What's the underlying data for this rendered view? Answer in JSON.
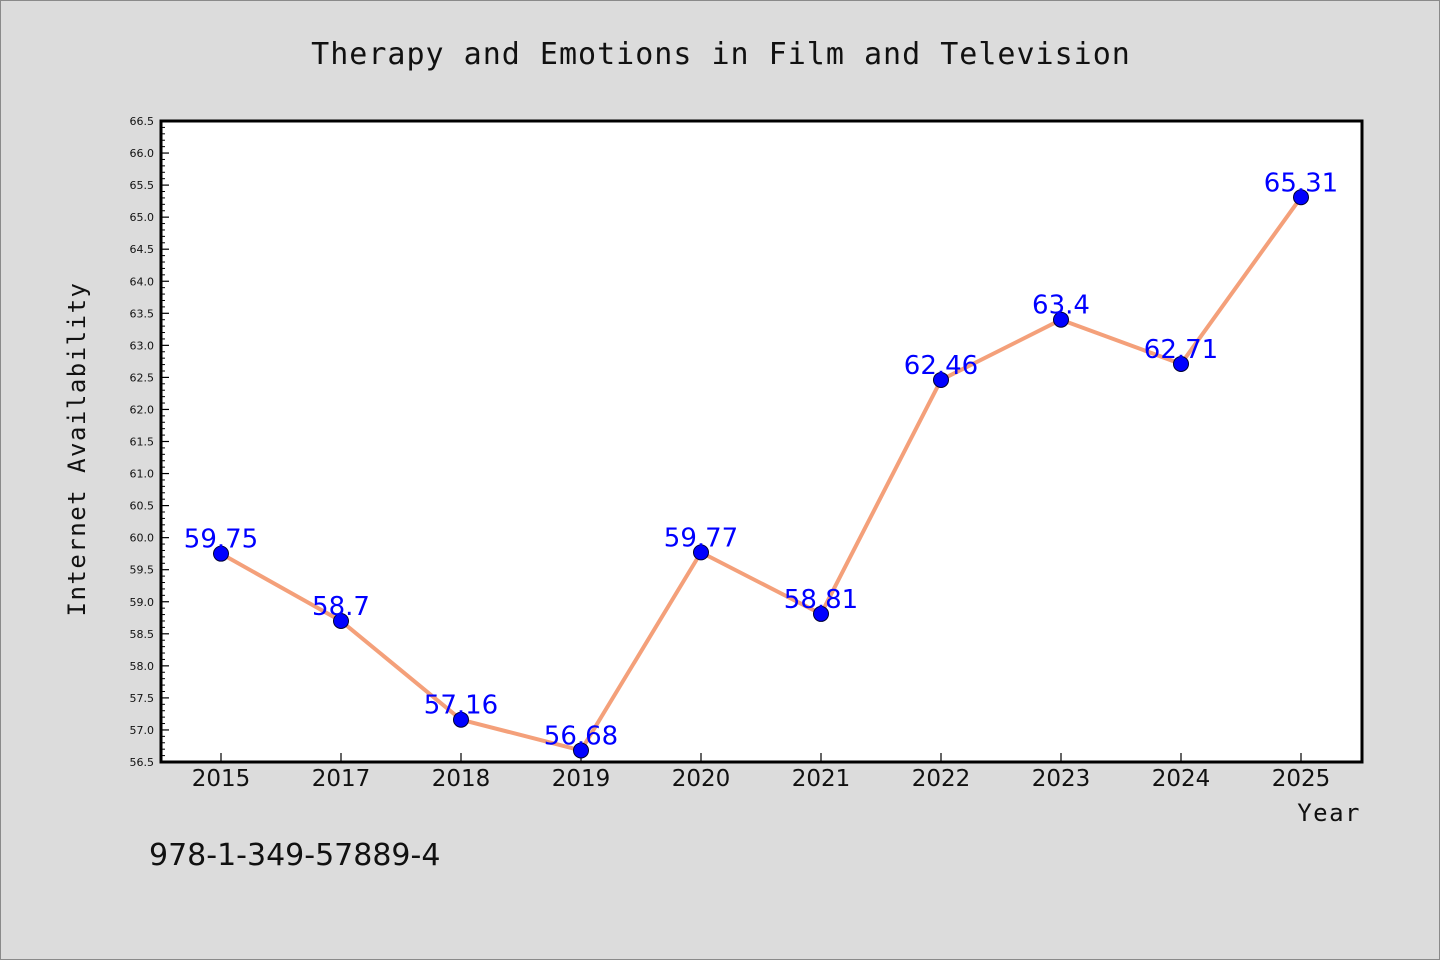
{
  "chart_data": {
    "type": "line",
    "title": "Therapy and Emotions in Film and Television",
    "xlabel": "Year",
    "ylabel": "Internet Availability",
    "categories": [
      "2015",
      "2017",
      "2018",
      "2019",
      "2020",
      "2021",
      "2022",
      "2023",
      "2024",
      "2025"
    ],
    "series": [
      {
        "values": [
          59.75,
          58.7,
          57.16,
          56.68,
          59.77,
          58.81,
          62.46,
          63.4,
          62.71,
          65.31
        ],
        "line_color": "#f4a07a",
        "marker_color": "#0000ff"
      }
    ],
    "ylim": [
      56.5,
      66.5
    ],
    "yticks": [
      "56.5",
      "57.0",
      "57.5",
      "58.0",
      "58.5",
      "59.0",
      "59.5",
      "60.0",
      "60.5",
      "61.0",
      "61.5",
      "62.0",
      "62.5",
      "63.0",
      "63.5",
      "64.0",
      "64.5",
      "65.0",
      "65.5",
      "66.0",
      "66.5"
    ],
    "data_labels": [
      "59.75",
      "58.7",
      "57.16",
      "56.68",
      "59.77",
      "58.81",
      "62.46",
      "63.4",
      "62.71",
      "65.31"
    ],
    "grid": false,
    "legend": "none"
  },
  "footer": {
    "isbn": "978-1-349-57889-4"
  },
  "colors": {
    "background": "#dcdcdc",
    "plot_background": "#ffffff",
    "line": "#f4a07a",
    "marker": "#0000ff",
    "data_label": "#0000ff"
  }
}
